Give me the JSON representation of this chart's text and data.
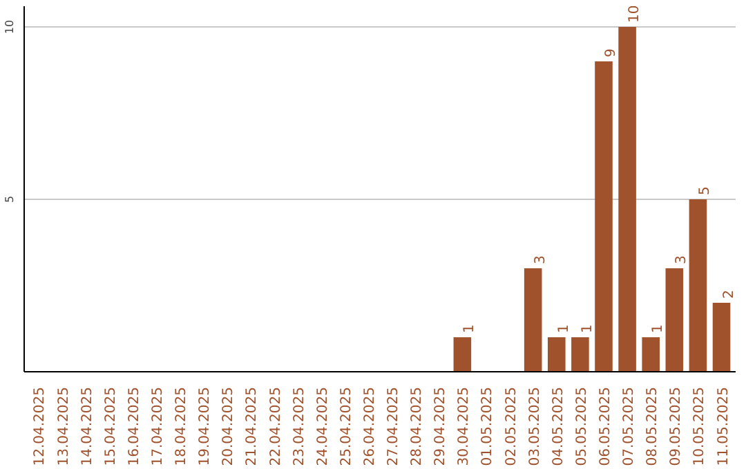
{
  "chart_data": {
    "type": "bar",
    "categories": [
      "12.04.2025",
      "13.04.2025",
      "14.04.2025",
      "15.04.2025",
      "16.04.2025",
      "17.04.2025",
      "18.04.2025",
      "19.04.2025",
      "20.04.2025",
      "21.04.2025",
      "22.04.2025",
      "23.04.2025",
      "24.04.2025",
      "25.04.2025",
      "26.04.2025",
      "27.04.2025",
      "28.04.2025",
      "29.04.2025",
      "30.04.2025",
      "01.05.2025",
      "02.05.2025",
      "03.05.2025",
      "04.05.2025",
      "05.05.2025",
      "06.05.2025",
      "07.05.2025",
      "08.05.2025",
      "09.05.2025",
      "10.05.2025",
      "11.05.2025"
    ],
    "values": [
      0,
      0,
      0,
      0,
      0,
      0,
      0,
      0,
      0,
      0,
      0,
      0,
      0,
      0,
      0,
      0,
      0,
      0,
      1,
      0,
      0,
      3,
      1,
      1,
      9,
      10,
      1,
      3,
      5,
      2
    ],
    "value_labels": [
      null,
      null,
      null,
      null,
      null,
      null,
      null,
      null,
      null,
      null,
      null,
      null,
      null,
      null,
      null,
      null,
      null,
      null,
      "1",
      null,
      null,
      "3",
      "1",
      "1",
      "9",
      "10",
      "1",
      "3",
      "5",
      "2"
    ],
    "color": "#a0522d",
    "ylim": [
      0,
      10.6
    ],
    "yticks": [
      5,
      10
    ],
    "grid": "y"
  }
}
